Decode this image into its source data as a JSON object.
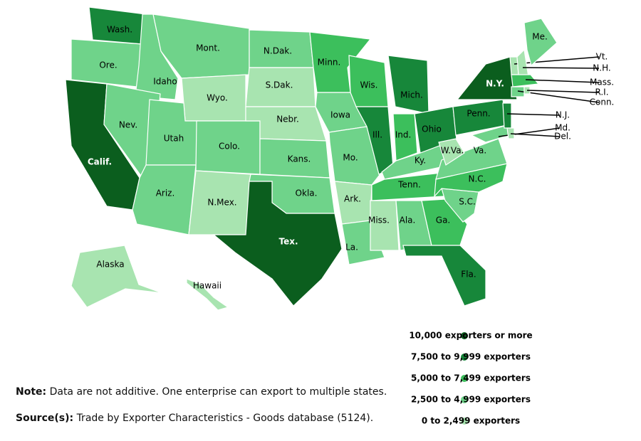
{
  "legend": [
    {
      "label": "10,000 exporters or more",
      "color": "#0b5e1e"
    },
    {
      "label": "7,500 to 9,999 exporters",
      "color": "#17873a"
    },
    {
      "label": "5,000 to 7,499 exporters",
      "color": "#3cbf5c"
    },
    {
      "label": "2,500 to 4,999 exporters",
      "color": "#6fd38a"
    },
    {
      "label": "0 to 2,499 exporters",
      "color": "#a8e4b0"
    }
  ],
  "states": [
    {
      "label": "Wash.",
      "category": 1
    },
    {
      "label": "Ore.",
      "category": 3
    },
    {
      "label": "Calif.",
      "category": 0
    },
    {
      "label": "Idaho",
      "category": 3
    },
    {
      "label": "Nev.",
      "category": 3
    },
    {
      "label": "Mont.",
      "category": 3
    },
    {
      "label": "Wyo.",
      "category": 4
    },
    {
      "label": "Utah",
      "category": 3
    },
    {
      "label": "Ariz.",
      "category": 3
    },
    {
      "label": "Colo.",
      "category": 3
    },
    {
      "label": "N.Mex.",
      "category": 4
    },
    {
      "label": "N.Dak.",
      "category": 3
    },
    {
      "label": "S.Dak.",
      "category": 4
    },
    {
      "label": "Nebr.",
      "category": 4
    },
    {
      "label": "Kans.",
      "category": 3
    },
    {
      "label": "Okla.",
      "category": 3
    },
    {
      "label": "Tex.",
      "category": 0
    },
    {
      "label": "Minn.",
      "category": 2
    },
    {
      "label": "Iowa",
      "category": 3
    },
    {
      "label": "Mo.",
      "category": 3
    },
    {
      "label": "Ark.",
      "category": 4
    },
    {
      "label": "La.",
      "category": 3
    },
    {
      "label": "Wis.",
      "category": 2
    },
    {
      "label": "Ill.",
      "category": 1
    },
    {
      "label": "Mich.",
      "category": 1
    },
    {
      "label": "Ind.",
      "category": 2
    },
    {
      "label": "Ohio",
      "category": 1
    },
    {
      "label": "Ky.",
      "category": 3
    },
    {
      "label": "Tenn.",
      "category": 2
    },
    {
      "label": "Miss.",
      "category": 4
    },
    {
      "label": "Ala.",
      "category": 3
    },
    {
      "label": "Ga.",
      "category": 2
    },
    {
      "label": "Fla.",
      "category": 1
    },
    {
      "label": "S.C.",
      "category": 3
    },
    {
      "label": "N.C.",
      "category": 2
    },
    {
      "label": "Va.",
      "category": 3
    },
    {
      "label": "W.Va.",
      "category": 4
    },
    {
      "label": "Penn.",
      "category": 1
    },
    {
      "label": "N.Y.",
      "category": 0
    },
    {
      "label": "Md.",
      "category": 3
    },
    {
      "label": "N.J.",
      "category": 1
    },
    {
      "label": "Del.",
      "category": 4
    },
    {
      "label": "Vt.",
      "category": 4
    },
    {
      "label": "N.H.",
      "category": 4
    },
    {
      "label": "Me.",
      "category": 3
    },
    {
      "label": "Mass.",
      "category": 2
    },
    {
      "label": "Conn.",
      "category": 3
    },
    {
      "label": "R.I.",
      "category": 4
    },
    {
      "label": "Alaska",
      "category": 4
    },
    {
      "label": "Hawaii",
      "category": 4
    }
  ],
  "note": {
    "label": "Note:",
    "text": "Data are not additive. One enterprise can export to multiple states."
  },
  "source": {
    "label": "Source(s):",
    "text": "Trade by Exporter Characteristics - Goods database (5124)."
  }
}
